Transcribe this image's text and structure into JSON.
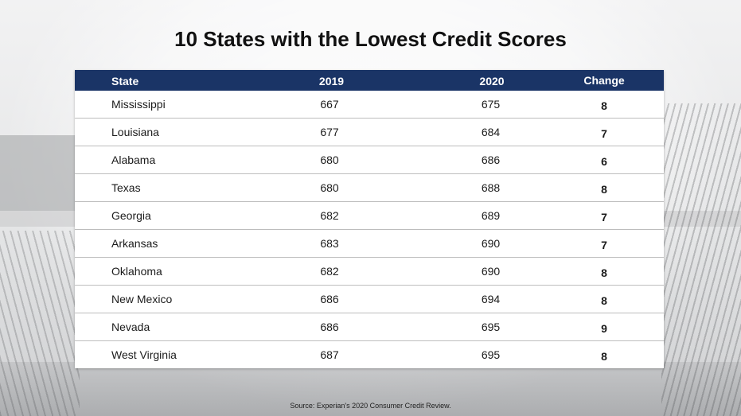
{
  "title": "10 States with the Lowest Credit Scores",
  "source": "Source:  Experian's 2020 Consumer Credit Review.",
  "colors": {
    "header_bg": "#1a3466",
    "header_text": "#ffffff",
    "row_divider": "#bdbdbd"
  },
  "chart_data": {
    "type": "table",
    "title": "10 States with the Lowest Credit Scores",
    "columns": [
      "State",
      "2019",
      "2020",
      "Change"
    ],
    "rows": [
      {
        "state": "Mississippi",
        "y2019": "667",
        "y2020": "675",
        "change": "8"
      },
      {
        "state": "Louisiana",
        "y2019": "677",
        "y2020": "684",
        "change": "7"
      },
      {
        "state": "Alabama",
        "y2019": "680",
        "y2020": "686",
        "change": "6"
      },
      {
        "state": "Texas",
        "y2019": "680",
        "y2020": "688",
        "change": "8"
      },
      {
        "state": "Georgia",
        "y2019": "682",
        "y2020": "689",
        "change": "7"
      },
      {
        "state": "Arkansas",
        "y2019": "683",
        "y2020": "690",
        "change": "7"
      },
      {
        "state": "Oklahoma",
        "y2019": "682",
        "y2020": "690",
        "change": "8"
      },
      {
        "state": "New Mexico",
        "y2019": "686",
        "y2020": "694",
        "change": "8"
      },
      {
        "state": "Nevada",
        "y2019": "686",
        "y2020": "695",
        "change": "9"
      },
      {
        "state": "West Virginia",
        "y2019": "687",
        "y2020": "695",
        "change": "8"
      }
    ]
  }
}
